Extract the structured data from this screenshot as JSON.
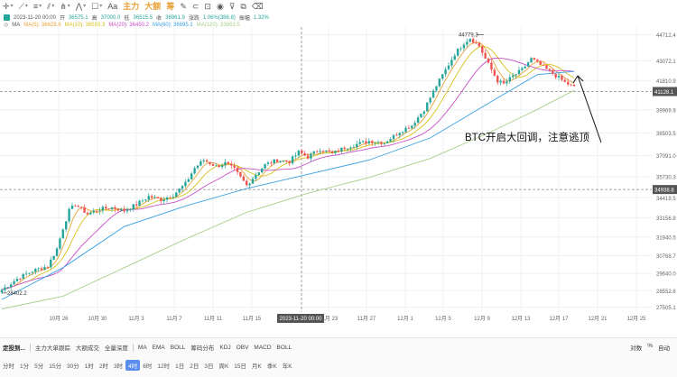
{
  "toolbar": {
    "items": [
      {
        "icon": "crosshair-icon",
        "glyph": "✛",
        "caret": true
      },
      {
        "icon": "line-icon",
        "glyph": "⟋",
        "caret": true
      },
      {
        "icon": "ray-icon",
        "glyph": "≡",
        "caret": true
      },
      {
        "icon": "channel-icon",
        "glyph": "⫽",
        "caret": true
      },
      {
        "icon": "pitchfork-icon",
        "glyph": "⋔",
        "caret": true
      },
      {
        "icon": "pattern-icon",
        "glyph": "⋀",
        "caret": true
      },
      {
        "icon": "shape-icon",
        "glyph": "☐",
        "caret": true
      },
      {
        "icon": "text-icon",
        "glyph": "Aa",
        "caret": false
      }
    ],
    "accent": [
      {
        "label": "主力",
        "caret": false
      },
      {
        "label": "大额",
        "caret": false
      },
      {
        "label": "筹",
        "caret": false
      }
    ],
    "tools": [
      {
        "icon": "pencil-icon",
        "glyph": "✎"
      },
      {
        "icon": "magnet-icon",
        "glyph": "⊂"
      },
      {
        "icon": "lock-icon",
        "glyph": "⊡"
      },
      {
        "icon": "eye-icon",
        "glyph": "◉"
      },
      {
        "icon": "filter-icon",
        "glyph": "⊽"
      },
      {
        "icon": "layers-icon",
        "glyph": "⧉"
      },
      {
        "icon": "trash-icon",
        "glyph": "⌫"
      }
    ]
  },
  "ohlc": {
    "time": "2023-11-20 00:00",
    "open_label": "开",
    "open": "36575.1",
    "high_label": "高",
    "high": "37000.0",
    "low_label": "低",
    "low": "36515.5",
    "close_label": "收",
    "close": "36961.9",
    "change_label": "涨跌",
    "change": "1.06%(386.8)",
    "amplitude_label": "振幅",
    "amplitude": "1.32%"
  },
  "ma": {
    "label": "MA",
    "items": [
      {
        "text": "MA(5): 36629.9",
        "color": "#e8a33a"
      },
      {
        "text": "MA(10): 36593.3",
        "color": "#d6c21f"
      },
      {
        "text": "MA(20): 36450.2",
        "color": "#c850c8"
      },
      {
        "text": "MA(60): 36695.1",
        "color": "#3ba0e3"
      },
      {
        "text": "MA(120): 33863.5",
        "color": "#a8d08d"
      }
    ]
  },
  "annotation": "BTC开启大回调，注意逃顶",
  "price_labels": {
    "current": "41128.1",
    "ref": "34938.8",
    "high_marker": "44779.3",
    "low_marker": "28402.2"
  },
  "crosshair_time": "2023-11-20 00:00",
  "bottom": {
    "row1": [
      "定投到...",
      "主力大单跟踪",
      "大额成交",
      "全量深度",
      "MA",
      "EMA",
      "BOLL",
      "筹码分布",
      "KDJ",
      "OBV",
      "MACD",
      "BOLL"
    ],
    "right": [
      "对数",
      "%",
      "自动"
    ],
    "timeframes": [
      "分时",
      "1分",
      "5分",
      "15分",
      "30分",
      "1时",
      "2时",
      "3时",
      "4时",
      "6时",
      "12时",
      "1日",
      "2日",
      "3日",
      "周K",
      "15日",
      "月K",
      "季K",
      "年K"
    ],
    "active_tf": "4时"
  },
  "colors": {
    "up": "#26a69a",
    "down": "#ef5350",
    "grid": "#eef0f3",
    "axis_text": "#666666"
  },
  "chart_data": {
    "type": "candlestick",
    "x_ticks": [
      "10月 26",
      "10月 30",
      "11月 3",
      "11月 7",
      "11月 11",
      "11月 15",
      "11月 23",
      "11月 27",
      "12月 1",
      "12月 5",
      "12月 9",
      "12月 13",
      "12月 17",
      "12月 21",
      "12月 25"
    ],
    "y_ticks": [
      "44712.4",
      "43072.1",
      "41810.9",
      "39969.9",
      "38503.5",
      "37091.0",
      "35730.3",
      "34419.5",
      "33156.8",
      "31940.5",
      "30768.7",
      "29640.0",
      "28552.6",
      "27505.1"
    ],
    "ylim": [
      27200,
      45200
    ],
    "close_path": [
      [
        0,
        28600
      ],
      [
        5,
        29300
      ],
      [
        10,
        29800
      ],
      [
        15,
        30100
      ],
      [
        18,
        31200
      ],
      [
        20,
        32500
      ],
      [
        22,
        33600
      ],
      [
        24,
        34000
      ],
      [
        28,
        33400
      ],
      [
        32,
        33700
      ],
      [
        36,
        33800
      ],
      [
        40,
        33600
      ],
      [
        44,
        34000
      ],
      [
        48,
        34500
      ],
      [
        52,
        34300
      ],
      [
        56,
        34600
      ],
      [
        60,
        35300
      ],
      [
        63,
        36300
      ],
      [
        66,
        36800
      ],
      [
        70,
        36400
      ],
      [
        73,
        36600
      ],
      [
        76,
        36200
      ],
      [
        80,
        35200
      ],
      [
        83,
        35900
      ],
      [
        86,
        36500
      ],
      [
        90,
        36800
      ],
      [
        94,
        36700
      ],
      [
        97,
        37300
      ],
      [
        100,
        37000
      ],
      [
        104,
        37500
      ],
      [
        108,
        37200
      ],
      [
        112,
        37600
      ],
      [
        116,
        37800
      ],
      [
        120,
        38000
      ],
      [
        125,
        37900
      ],
      [
        130,
        38600
      ],
      [
        134,
        39000
      ],
      [
        138,
        40000
      ],
      [
        142,
        41500
      ],
      [
        145,
        42500
      ],
      [
        148,
        43500
      ],
      [
        151,
        44200
      ],
      [
        153,
        44500
      ],
      [
        156,
        44000
      ],
      [
        158,
        43200
      ],
      [
        160,
        42500
      ],
      [
        162,
        41800
      ],
      [
        164,
        41600
      ],
      [
        167,
        42100
      ],
      [
        170,
        42500
      ],
      [
        173,
        43200
      ],
      [
        176,
        42800
      ],
      [
        179,
        42400
      ],
      [
        182,
        42000
      ],
      [
        184,
        41700
      ],
      [
        187,
        41400
      ]
    ],
    "ma_series": [
      {
        "name": "MA(60)",
        "color": "#3ba0e3",
        "points": [
          [
            0,
            28000
          ],
          [
            20,
            30000
          ],
          [
            40,
            32600
          ],
          [
            60,
            33900
          ],
          [
            80,
            35000
          ],
          [
            100,
            35900
          ],
          [
            120,
            36800
          ],
          [
            140,
            38200
          ],
          [
            160,
            40500
          ],
          [
            175,
            42200
          ],
          [
            187,
            42400
          ]
        ]
      },
      {
        "name": "MA(120)",
        "color": "#a8d08d",
        "points": [
          [
            0,
            27400
          ],
          [
            20,
            28200
          ],
          [
            40,
            30000
          ],
          [
            60,
            31800
          ],
          [
            80,
            33500
          ],
          [
            100,
            34700
          ],
          [
            120,
            35700
          ],
          [
            140,
            36900
          ],
          [
            160,
            38600
          ],
          [
            175,
            40000
          ],
          [
            187,
            41200
          ]
        ]
      }
    ],
    "hlines": [
      41128.1,
      34938.8
    ]
  }
}
